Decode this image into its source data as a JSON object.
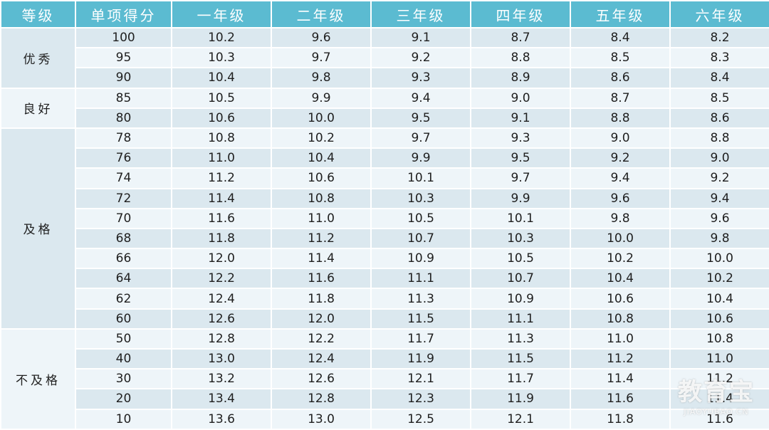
{
  "headers": [
    "等级",
    "单项得分",
    "一年级",
    "二年级",
    "三年级",
    "四年级",
    "五年级",
    "六年级"
  ],
  "groups": [
    {
      "grade": "优秀",
      "rows": [
        [
          "100",
          "10.2",
          "9.6",
          "9.1",
          "8.7",
          "8.4",
          "8.2"
        ],
        [
          "95",
          "10.3",
          "9.7",
          "9.2",
          "8.8",
          "8.5",
          "8.3"
        ],
        [
          "90",
          "10.4",
          "9.8",
          "9.3",
          "8.9",
          "8.6",
          "8.4"
        ]
      ]
    },
    {
      "grade": "良好",
      "rows": [
        [
          "85",
          "10.5",
          "9.9",
          "9.4",
          "9.0",
          "8.7",
          "8.5"
        ],
        [
          "80",
          "10.6",
          "10.0",
          "9.5",
          "9.1",
          "8.8",
          "8.6"
        ]
      ]
    },
    {
      "grade": "及格",
      "rows": [
        [
          "78",
          "10.8",
          "10.2",
          "9.7",
          "9.3",
          "9.0",
          "8.8"
        ],
        [
          "76",
          "11.0",
          "10.4",
          "9.9",
          "9.5",
          "9.2",
          "9.0"
        ],
        [
          "74",
          "11.2",
          "10.6",
          "10.1",
          "9.7",
          "9.4",
          "9.2"
        ],
        [
          "72",
          "11.4",
          "10.8",
          "10.3",
          "9.9",
          "9.6",
          "9.4"
        ],
        [
          "70",
          "11.6",
          "11.0",
          "10.5",
          "10.1",
          "9.8",
          "9.6"
        ],
        [
          "68",
          "11.8",
          "11.2",
          "10.7",
          "10.3",
          "10.0",
          "9.8"
        ],
        [
          "66",
          "12.0",
          "11.4",
          "10.9",
          "10.5",
          "10.2",
          "10.0"
        ],
        [
          "64",
          "12.2",
          "11.6",
          "11.1",
          "10.7",
          "10.4",
          "10.2"
        ],
        [
          "62",
          "12.4",
          "11.8",
          "11.3",
          "10.9",
          "10.6",
          "10.4"
        ],
        [
          "60",
          "12.6",
          "12.0",
          "11.5",
          "11.1",
          "10.8",
          "10.6"
        ]
      ]
    },
    {
      "grade": "不及格",
      "rows": [
        [
          "50",
          "12.8",
          "12.2",
          "11.7",
          "11.3",
          "11.0",
          "10.8"
        ],
        [
          "40",
          "13.0",
          "12.4",
          "11.9",
          "11.5",
          "11.2",
          "11.0"
        ],
        [
          "30",
          "13.2",
          "12.6",
          "12.1",
          "11.7",
          "11.4",
          "11.2"
        ],
        [
          "20",
          "13.4",
          "12.8",
          "12.3",
          "11.9",
          "11.6",
          "11.4"
        ],
        [
          "10",
          "13.6",
          "13.0",
          "12.5",
          "12.1",
          "11.8",
          "11.6"
        ]
      ]
    }
  ],
  "watermark": {
    "logo": "教育宝",
    "domain": "JIAOYUBAO.CN"
  },
  "colors": {
    "header_bg": "#5bbbd1",
    "row_dark": "#dbe8ef",
    "row_light": "#eef5f9"
  }
}
